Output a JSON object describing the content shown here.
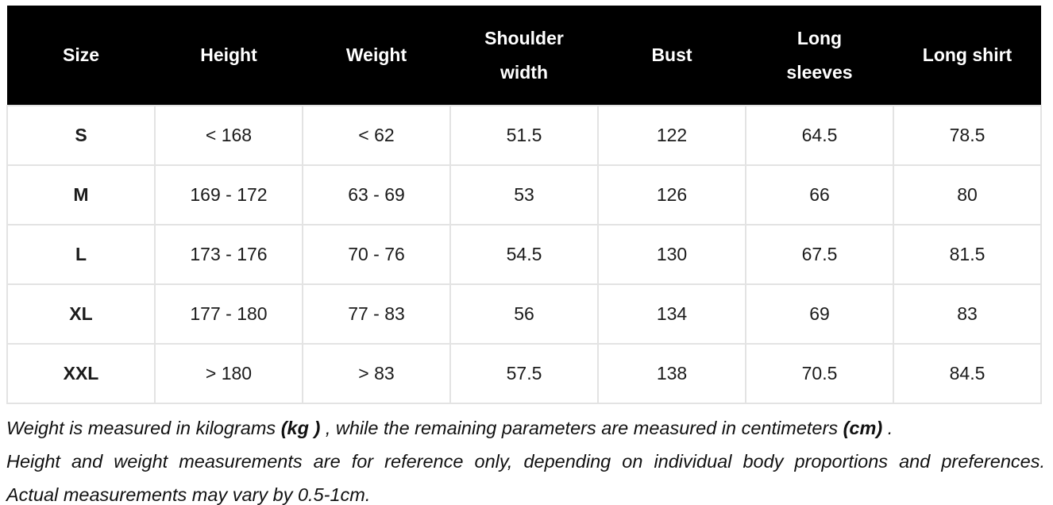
{
  "table": {
    "columns": [
      "Size",
      "Height",
      "Weight",
      "Shoulder width",
      "Bust",
      "Long sleeves",
      "Long shirt"
    ],
    "rows": [
      {
        "size": "S",
        "height": "< 168",
        "weight": "< 62",
        "shoulder_width": "51.5",
        "bust": "122",
        "long_sleeves": "64.5",
        "long_shirt": "78.5"
      },
      {
        "size": "M",
        "height": "169 - 172",
        "weight": "63 - 69",
        "shoulder_width": "53",
        "bust": "126",
        "long_sleeves": "66",
        "long_shirt": "80"
      },
      {
        "size": "L",
        "height": "173 - 176",
        "weight": "70 - 76",
        "shoulder_width": "54.5",
        "bust": "130",
        "long_sleeves": "67.5",
        "long_shirt": "81.5"
      },
      {
        "size": "XL",
        "height": "177 - 180",
        "weight": "77 - 83",
        "shoulder_width": "56",
        "bust": "134",
        "long_sleeves": "69",
        "long_shirt": "83"
      },
      {
        "size": "XXL",
        "height": "> 180",
        "weight": "> 83",
        "shoulder_width": "57.5",
        "bust": "138",
        "long_sleeves": "70.5",
        "long_shirt": "84.5"
      }
    ]
  },
  "notes": {
    "line1_parts": {
      "p0": "Weight is measured in kilograms ",
      "p1": "(kg )",
      "p2": " , while the remaining parameters are measured in centimeters ",
      "p3": "(cm)",
      "p4": " ."
    },
    "line2": "Height and weight measurements are for reference only, depending on individual body proportions and preferences.",
    "line3": "Actual measurements may vary by 0.5-1cm."
  },
  "colors": {
    "header_bg": "#000000",
    "header_text": "#ffffff",
    "body_text": "#1b1b1b",
    "border": "#e3e3e3"
  }
}
